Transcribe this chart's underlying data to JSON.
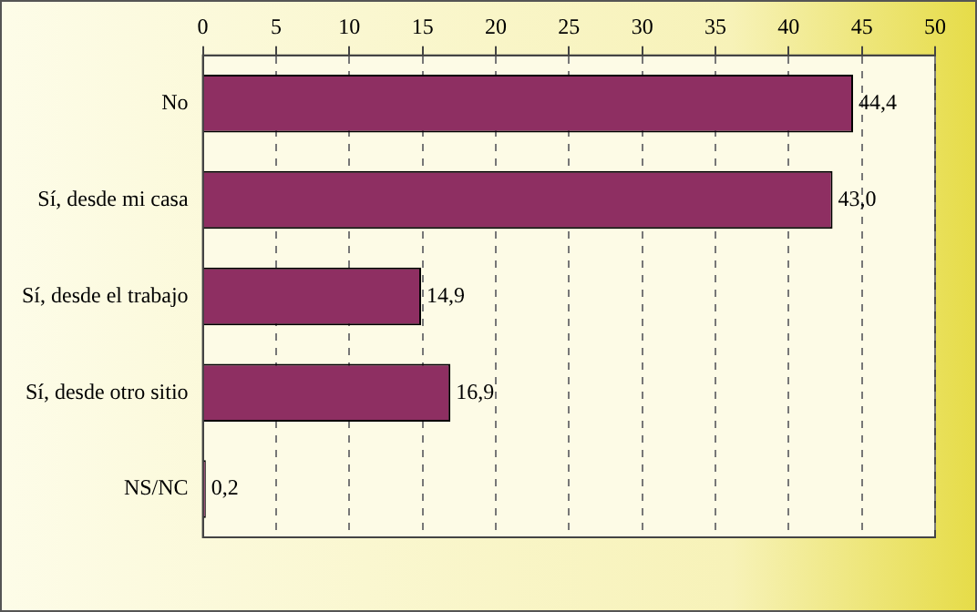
{
  "chart_data": {
    "type": "bar",
    "orientation": "horizontal",
    "categories": [
      "No",
      "Sí, desde mi casa",
      "Sí, desde el trabajo",
      "Sí, desde otro sitio",
      "NS/NC"
    ],
    "values": [
      44.4,
      43.0,
      14.9,
      16.9,
      0.2
    ],
    "value_labels": [
      "44,4",
      "43,0",
      "14,9",
      "16,9",
      "0,2"
    ],
    "color": "#8e2f62",
    "xlim": [
      0,
      50
    ],
    "xticks": [
      0,
      5,
      10,
      15,
      20,
      25,
      30,
      35,
      40,
      45,
      50
    ],
    "grid": "x",
    "legend": false
  }
}
